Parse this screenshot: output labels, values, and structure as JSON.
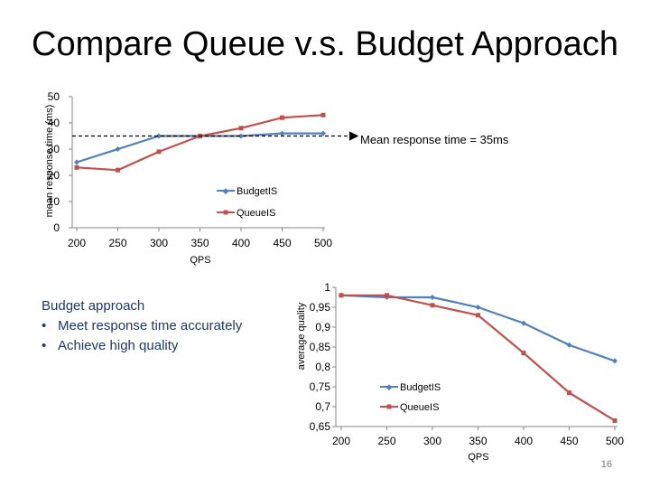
{
  "slide": {
    "title": "Compare Queue v.s. Budget Approach",
    "page_number": "16",
    "bullets_heading": "Budget approach",
    "bullets": [
      "Meet response time accurately",
      "Achieve high quality"
    ],
    "bullet_glyph": "•"
  },
  "chart_data": [
    {
      "type": "line",
      "ylabel": "mean response time (ms)",
      "xlabel": "QPS",
      "categories": [
        200,
        250,
        300,
        350,
        400,
        450,
        500
      ],
      "x_tick_labels": [
        "200",
        "250",
        "300",
        "350",
        "400",
        "450",
        "500"
      ],
      "y_tick_labels": [
        "0",
        "10",
        "20",
        "30",
        "40",
        "50"
      ],
      "ylim": [
        0,
        50
      ],
      "grid": false,
      "legend_position": "center-right",
      "series": [
        {
          "name": "BudgetIS",
          "color": "#4f81bd",
          "values": [
            25,
            30,
            35,
            35,
            35,
            36,
            36
          ]
        },
        {
          "name": "QueueIS",
          "color": "#c0504d",
          "values": [
            23,
            22,
            29,
            35,
            38,
            42,
            43
          ]
        }
      ],
      "annotation": {
        "text": "Mean response time = 35ms",
        "y": 35
      }
    },
    {
      "type": "line",
      "ylabel": "average quality",
      "xlabel": "QPS",
      "categories": [
        200,
        250,
        300,
        350,
        400,
        450,
        500
      ],
      "x_tick_labels": [
        "200",
        "250",
        "300",
        "350",
        "400",
        "450",
        "500"
      ],
      "y_tick_labels": [
        "0,65",
        "0,7",
        "0,75",
        "0,8",
        "0,85",
        "0,9",
        "0,95",
        "1"
      ],
      "ylim": [
        0.65,
        1.0
      ],
      "grid": false,
      "legend_position": "bottom-center",
      "series": [
        {
          "name": "BudgetIS",
          "color": "#4f81bd",
          "values": [
            0.98,
            0.975,
            0.975,
            0.95,
            0.91,
            0.855,
            0.815
          ]
        },
        {
          "name": "QueueIS",
          "color": "#c0504d",
          "values": [
            0.98,
            0.98,
            0.955,
            0.93,
            0.835,
            0.735,
            0.665
          ]
        }
      ]
    }
  ]
}
